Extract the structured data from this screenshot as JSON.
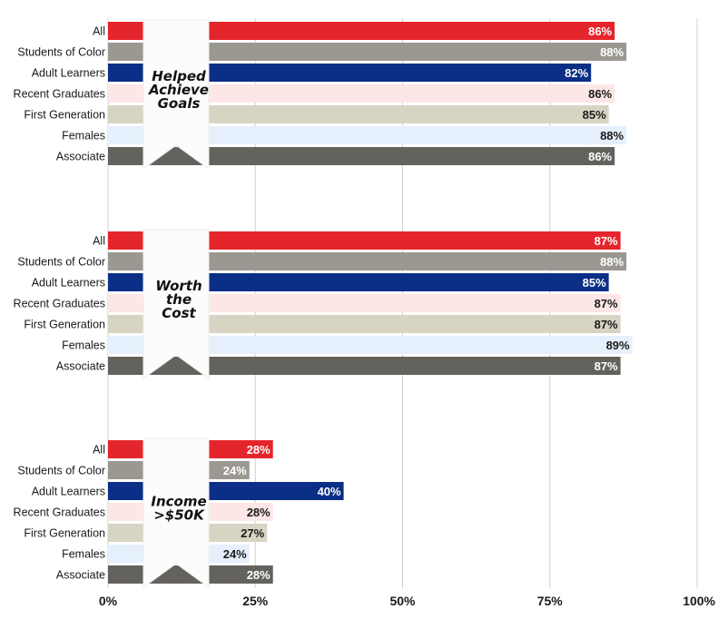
{
  "chart_data": {
    "type": "bar",
    "orientation": "horizontal",
    "categories": [
      "All",
      "Students of Color",
      "Adult Learners",
      "Recent Graduates",
      "First Generation",
      "Females",
      "Associate"
    ],
    "series_colors": [
      "#e4262c",
      "#9a9890",
      "#0b2f86",
      "#fde6e6",
      "#d8d4c4",
      "#e6f0fc",
      "#64625c"
    ],
    "value_label_colors": [
      "#ffffff",
      "#ffffff",
      "#ffffff",
      "#1a1a1a",
      "#1a1a1a",
      "#1a1a1a",
      "#ffffff"
    ],
    "xlim": [
      0,
      100
    ],
    "x_ticks": [
      0,
      25,
      50,
      75,
      100
    ],
    "x_tick_labels": [
      "0%",
      "25%",
      "50%",
      "75%",
      "100%"
    ],
    "grid": "vertical",
    "panels": [
      {
        "title": [
          "Helped",
          "Achieve",
          "Goals"
        ],
        "values": [
          86,
          88,
          82,
          86,
          85,
          88,
          86
        ],
        "value_labels": [
          "86%",
          "88%",
          "82%",
          "86%",
          "85%",
          "88%",
          "86%"
        ]
      },
      {
        "title": [
          "Worth",
          "the",
          "Cost"
        ],
        "values": [
          87,
          88,
          85,
          87,
          87,
          89,
          87
        ],
        "value_labels": [
          "87%",
          "88%",
          "85%",
          "87%",
          "87%",
          "89%",
          "87%"
        ]
      },
      {
        "title": [
          "Income",
          ">$50K"
        ],
        "values": [
          28,
          24,
          40,
          28,
          27,
          24,
          28
        ],
        "value_labels": [
          "28%",
          "24%",
          "40%",
          "28%",
          "27%",
          "24%",
          "28%"
        ]
      }
    ]
  }
}
